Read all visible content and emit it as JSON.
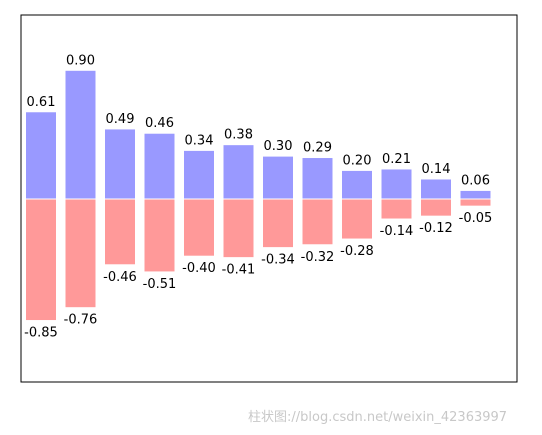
{
  "chart_data": {
    "type": "bar",
    "stacked": "diverging",
    "categories": [
      "",
      "",
      "",
      "",
      "",
      "",
      "",
      "",
      "",
      "",
      "",
      ""
    ],
    "series": [
      {
        "values": [
          0.61,
          0.9,
          0.49,
          0.46,
          0.34,
          0.38,
          0.3,
          0.29,
          0.2,
          0.21,
          0.14,
          0.06
        ],
        "color": "#9999ff",
        "labels": [
          "0.61",
          "0.90",
          "0.49",
          "0.46",
          "0.34",
          "0.38",
          "0.30",
          "0.29",
          "0.20",
          "0.21",
          "0.14",
          "0.06"
        ]
      },
      {
        "values": [
          -0.85,
          -0.76,
          -0.46,
          -0.51,
          -0.4,
          -0.41,
          -0.34,
          -0.32,
          -0.28,
          -0.14,
          -0.12,
          -0.05
        ],
        "color": "#ff9999",
        "labels": [
          "-0.85",
          "-0.76",
          "-0.46",
          "-0.51",
          "-0.40",
          "-0.41",
          "-0.34",
          "-0.32",
          "-0.28",
          "-0.14",
          "-0.12",
          "-0.05"
        ]
      }
    ],
    "ylim": [
      -1.25,
      1.25
    ],
    "xticks": false,
    "yticks": false,
    "grid": false,
    "title": "",
    "xlabel": "",
    "ylabel": ""
  },
  "watermark": "柱状图://blog.csdn.net/weixin_42363997"
}
